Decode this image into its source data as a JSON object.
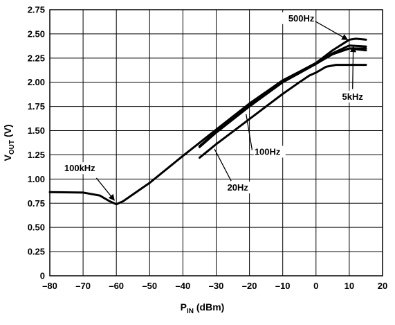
{
  "chart_data": {
    "type": "line",
    "title": "",
    "xlabel": {
      "main": "P",
      "sub": "IN",
      "unit": " (dBm)"
    },
    "ylabel": {
      "main": "V",
      "sub": "OUT",
      "unit": " (V)"
    },
    "xlim": [
      -80,
      15
    ],
    "ylim": [
      0,
      2.75
    ],
    "grid": true,
    "xticks": [
      -80,
      -70,
      -60,
      -50,
      -40,
      -30,
      -20,
      -10,
      0,
      10,
      20
    ],
    "xtick_labels": [
      "–80",
      "–70",
      "–60",
      "–50",
      "–40",
      "–30",
      "–20",
      "–10",
      "0",
      "10",
      "20"
    ],
    "yticks": [
      0,
      0.25,
      0.5,
      0.75,
      1.0,
      1.25,
      1.5,
      1.75,
      2.0,
      2.25,
      2.5,
      2.75
    ],
    "ytick_labels": [
      "0",
      "0.25",
      "0.50",
      "0.75",
      "1.00",
      "1.25",
      "1.50",
      "1.75",
      "2.00",
      "2.25",
      "2.50",
      "2.75"
    ],
    "series": [
      {
        "name": "100kHz",
        "points": [
          [
            -80,
            0.865
          ],
          [
            -70,
            0.86
          ],
          [
            -65,
            0.83
          ],
          [
            -62,
            0.77
          ],
          [
            -60,
            0.74
          ],
          [
            -58,
            0.77
          ],
          [
            -50,
            0.96
          ],
          [
            -40,
            1.24
          ],
          [
            -30,
            1.51
          ],
          [
            -20,
            1.78
          ],
          [
            -10,
            2.02
          ],
          [
            -5,
            2.11
          ],
          [
            0,
            2.2
          ],
          [
            5,
            2.29
          ],
          [
            10,
            2.35
          ],
          [
            15,
            2.35
          ]
        ]
      },
      {
        "name": "500Hz",
        "points": [
          [
            -35,
            1.34
          ],
          [
            -30,
            1.49
          ],
          [
            -20,
            1.77
          ],
          [
            -10,
            2.01
          ],
          [
            0,
            2.2
          ],
          [
            5,
            2.33
          ],
          [
            10,
            2.44
          ],
          [
            12,
            2.45
          ],
          [
            15,
            2.44
          ]
        ]
      },
      {
        "name": "5kHz",
        "points": [
          [
            -35,
            1.34
          ],
          [
            -30,
            1.48
          ],
          [
            -20,
            1.76
          ],
          [
            -10,
            2.0
          ],
          [
            0,
            2.19
          ],
          [
            5,
            2.3
          ],
          [
            10,
            2.38
          ],
          [
            15,
            2.37
          ]
        ]
      },
      {
        "name": "100Hz",
        "points": [
          [
            -35,
            1.33
          ],
          [
            -30,
            1.48
          ],
          [
            -20,
            1.75
          ],
          [
            -10,
            2.0
          ],
          [
            0,
            2.19
          ],
          [
            5,
            2.29
          ],
          [
            10,
            2.35
          ],
          [
            15,
            2.33
          ]
        ]
      },
      {
        "name": "20Hz",
        "points": [
          [
            -35,
            1.22
          ],
          [
            -30,
            1.36
          ],
          [
            -20,
            1.62
          ],
          [
            -10,
            1.88
          ],
          [
            -5,
            2.0
          ],
          [
            -2,
            2.07
          ],
          [
            0,
            2.1
          ],
          [
            3,
            2.16
          ],
          [
            6,
            2.18
          ],
          [
            15,
            2.18
          ]
        ]
      }
    ],
    "annotations": [
      {
        "text": "500Hz",
        "anchor": "end",
        "label_at": [
          -0.5,
          2.63
        ],
        "line_from": [
          -0.2,
          2.63
        ],
        "line_to": [
          9.5,
          2.44
        ],
        "arrow": true
      },
      {
        "text": "5kHz",
        "anchor": "middle",
        "label_at": [
          11.0,
          1.82
        ],
        "line_from": [
          11.0,
          1.93
        ],
        "line_to": [
          11.2,
          2.37
        ],
        "arrow": true
      },
      {
        "text": "100Hz",
        "anchor": "start",
        "label_at": [
          -18.5,
          1.25
        ],
        "line_from": [
          -19.2,
          1.3
        ],
        "line_to": [
          -21.0,
          1.67
        ],
        "arrow": false
      },
      {
        "text": "20Hz",
        "anchor": "middle",
        "label_at": [
          -23.5,
          0.88
        ],
        "line_from": [
          -25.5,
          0.98
        ],
        "line_to": [
          -30.5,
          1.31
        ],
        "arrow": false
      },
      {
        "text": "100kHz",
        "anchor": "middle",
        "label_at": [
          -71.0,
          1.08
        ],
        "line_from": [
          -66.0,
          1.01
        ],
        "line_to": [
          -60.6,
          0.78
        ],
        "arrow": true
      }
    ]
  }
}
